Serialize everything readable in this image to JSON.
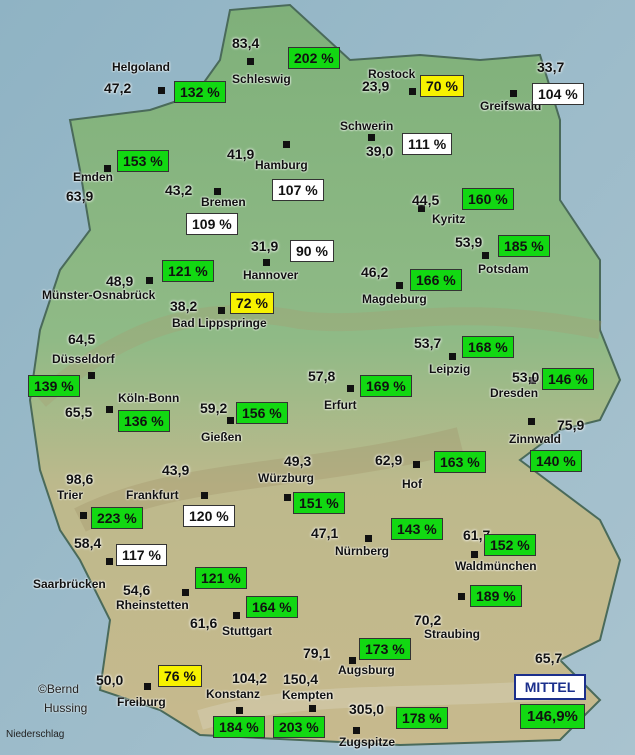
{
  "credit": {
    "line1": "©Bernd",
    "line2": "Hussing"
  },
  "footer": "Niederschlag",
  "mittel": {
    "title": "MITTEL",
    "value": "146,9%"
  },
  "colors": {
    "green": "#12d812",
    "yellow": "#f7f200",
    "white": "#ffffff",
    "mittel_border": "#1b2f8c"
  },
  "stations": [
    {
      "name": "Helgoland",
      "value": "47,2",
      "percent": "132 %",
      "color": "green"
    },
    {
      "name": "Schleswig",
      "value": "83,4",
      "percent": "202 %",
      "color": "green"
    },
    {
      "name": "Rostock",
      "value": "23,9",
      "percent": "70 %",
      "color": "yellow"
    },
    {
      "name": "Greifswald",
      "value": "33,7",
      "percent": "104 %",
      "color": "white"
    },
    {
      "name": "Schwerin",
      "value": "39,0",
      "percent": "111 %",
      "color": "white"
    },
    {
      "name": "Hamburg",
      "value": "41,9",
      "percent": "107 %",
      "color": "white"
    },
    {
      "name": "Emden",
      "value": "63,9",
      "percent": "153 %",
      "color": "green"
    },
    {
      "name": "Bremen",
      "value": "43,2",
      "percent": "109 %",
      "color": "white"
    },
    {
      "name": "Kyritz",
      "value": "44,5",
      "percent": "160 %",
      "color": "green"
    },
    {
      "name": "Potsdam",
      "value": "53,9",
      "percent": "185 %",
      "color": "green"
    },
    {
      "name": "Hannover",
      "value": "31,9",
      "percent": "90 %",
      "color": "white"
    },
    {
      "name": "Münster-Osnabrück",
      "value": "48,9",
      "percent": "121 %",
      "color": "green"
    },
    {
      "name": "Magdeburg",
      "value": "46,2",
      "percent": "166 %",
      "color": "green"
    },
    {
      "name": "Bad Lippspringe",
      "value": "38,2",
      "percent": "72 %",
      "color": "yellow"
    },
    {
      "name": "Düsseldorf",
      "value": "64,5",
      "percent": "139 %",
      "color": "green"
    },
    {
      "name": "Leipzig",
      "value": "53,7",
      "percent": "168 %",
      "color": "green"
    },
    {
      "name": "Erfurt",
      "value": "57,8",
      "percent": "169 %",
      "color": "green"
    },
    {
      "name": "Dresden",
      "value": "53,0",
      "percent": "146 %",
      "color": "green"
    },
    {
      "name": "Köln-Bonn",
      "value": "65,5",
      "percent": "136 %",
      "color": "green"
    },
    {
      "name": "Gießen",
      "value": "59,2",
      "percent": "156 %",
      "color": "green"
    },
    {
      "name": "Zinnwald",
      "value": "75,9",
      "percent": "140 %",
      "color": "green"
    },
    {
      "name": "Hof",
      "value": "62,9",
      "percent": "163 %",
      "color": "green"
    },
    {
      "name": "Würzburg",
      "value": "49,3",
      "percent": "151 %",
      "color": "green"
    },
    {
      "name": "Trier",
      "value": "98,6",
      "percent": "223 %",
      "color": "green"
    },
    {
      "name": "Frankfurt",
      "value": "43,9",
      "percent": "120 %",
      "color": "white"
    },
    {
      "name": "Nürnberg",
      "value": "47,1",
      "percent": "143 %",
      "color": "green"
    },
    {
      "name": "Waldmünchen",
      "value": "61,7",
      "percent": "152 %",
      "color": "green"
    },
    {
      "name": "Saarbrücken",
      "value": "58,4",
      "percent": "117 %",
      "color": "white"
    },
    {
      "name": "Rheinstetten",
      "value": "54,6",
      "percent": "121 %",
      "color": "green"
    },
    {
      "name": "Stuttgart",
      "value": "61,6",
      "percent": "164 %",
      "color": "green"
    },
    {
      "name": "Straubing",
      "value": "70,2",
      "percent": "189 %",
      "color": "green"
    },
    {
      "name": "Augsburg",
      "value": "79,1",
      "percent": "173 %",
      "color": "green"
    },
    {
      "name": "Freiburg",
      "value": "50,0",
      "percent": "76 %",
      "color": "yellow"
    },
    {
      "name": "Konstanz",
      "value": "104,2",
      "percent": "184 %",
      "color": "green"
    },
    {
      "name": "Kempten",
      "value": "150,4",
      "percent": "203 %",
      "color": "green"
    },
    {
      "name": "Zugspitze",
      "value": "305,0",
      "percent": "178 %",
      "color": "green"
    },
    {
      "name": "",
      "value": "65,7",
      "percent": "",
      "color": "green"
    }
  ]
}
